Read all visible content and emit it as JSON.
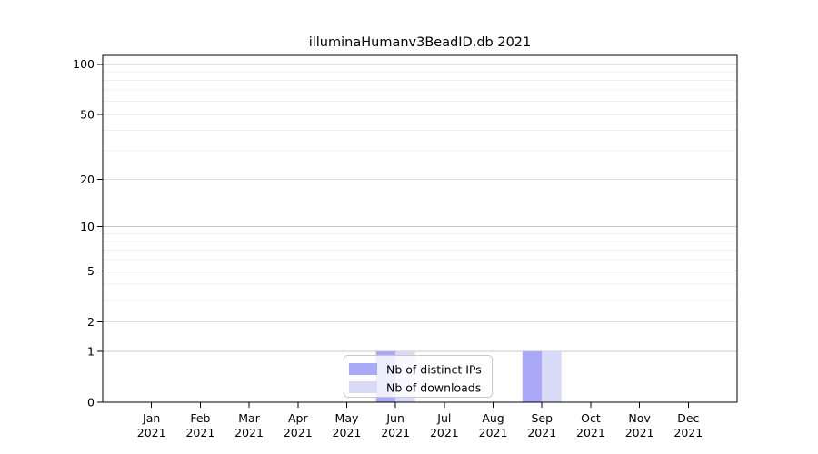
{
  "chart_data": {
    "type": "bar",
    "title": "illuminaHumanv3BeadID.db 2021",
    "year": "2021",
    "categories": [
      "Jan",
      "Feb",
      "Mar",
      "Apr",
      "May",
      "Jun",
      "Jul",
      "Aug",
      "Sep",
      "Oct",
      "Nov",
      "Dec"
    ],
    "series": [
      {
        "name": "Nb of distinct IPs",
        "color": "#a9a9f7",
        "values": [
          0,
          0,
          0,
          0,
          0,
          1,
          0,
          0,
          1,
          0,
          0,
          0
        ]
      },
      {
        "name": "Nb of downloads",
        "color": "#d9d9f8",
        "values": [
          0,
          0,
          0,
          0,
          0,
          1,
          0,
          0,
          1,
          0,
          0,
          0
        ]
      }
    ],
    "xlabel": "",
    "ylabel": "",
    "yscale": "log1p",
    "ylim": [
      0,
      113
    ],
    "yticks": [
      0,
      1,
      2,
      5,
      10,
      20,
      50,
      100
    ],
    "grid": "horizontal",
    "grid_lines": {
      "major": [
        1,
        10,
        100
      ],
      "mid": [
        2,
        5,
        20,
        50
      ],
      "minor": [
        3,
        4,
        6,
        7,
        8,
        9,
        30,
        40,
        60,
        70,
        80,
        90
      ]
    },
    "legend": {
      "position": "inside-bottom-center",
      "entries": [
        "Nb of distinct IPs",
        "Nb of downloads"
      ]
    },
    "colors": {
      "axis": "#000000",
      "grid_major": "#c8c8c8",
      "grid_mid": "#e1e1e1",
      "grid_minor": "#efefef",
      "legend_border": "#c9c9c9",
      "background": "#ffffff"
    }
  }
}
